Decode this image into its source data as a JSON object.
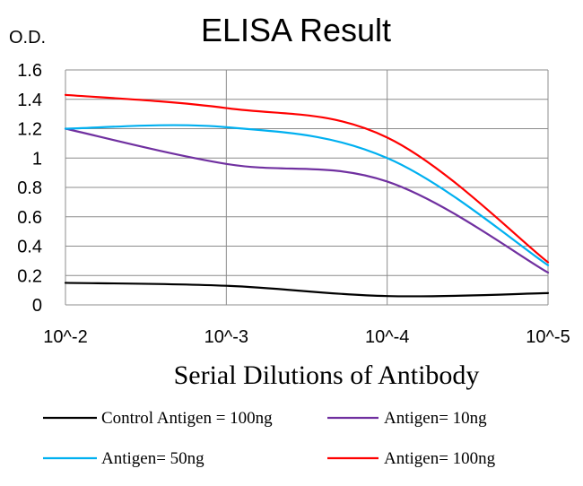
{
  "chart_data": {
    "type": "line",
    "title": "ELISA Result",
    "ylabel": "O.D.",
    "xlabel": "Serial Dilutions of Antibody",
    "categories": [
      "10^-2",
      "10^-3",
      "10^-4",
      "10^-5"
    ],
    "ylim": [
      0,
      1.6
    ],
    "yticks": [
      "0",
      "0.2",
      "0.4",
      "0.6",
      "0.8",
      "1",
      "1.2",
      "1.4",
      "1.6"
    ],
    "grid": true,
    "legend_position": "bottom",
    "series": [
      {
        "name": "Control Antigen = 100ng",
        "color": "#000000",
        "values": [
          0.15,
          0.13,
          0.06,
          0.08
        ]
      },
      {
        "name": "Antigen= 10ng",
        "color": "#7030a0",
        "values": [
          1.2,
          0.96,
          0.84,
          0.22
        ]
      },
      {
        "name": "Antigen= 50ng",
        "color": "#00b0f0",
        "values": [
          1.2,
          1.21,
          1.0,
          0.27
        ]
      },
      {
        "name": "Antigen= 100ng",
        "color": "#ff0000",
        "values": [
          1.43,
          1.34,
          1.14,
          0.29
        ]
      }
    ]
  }
}
